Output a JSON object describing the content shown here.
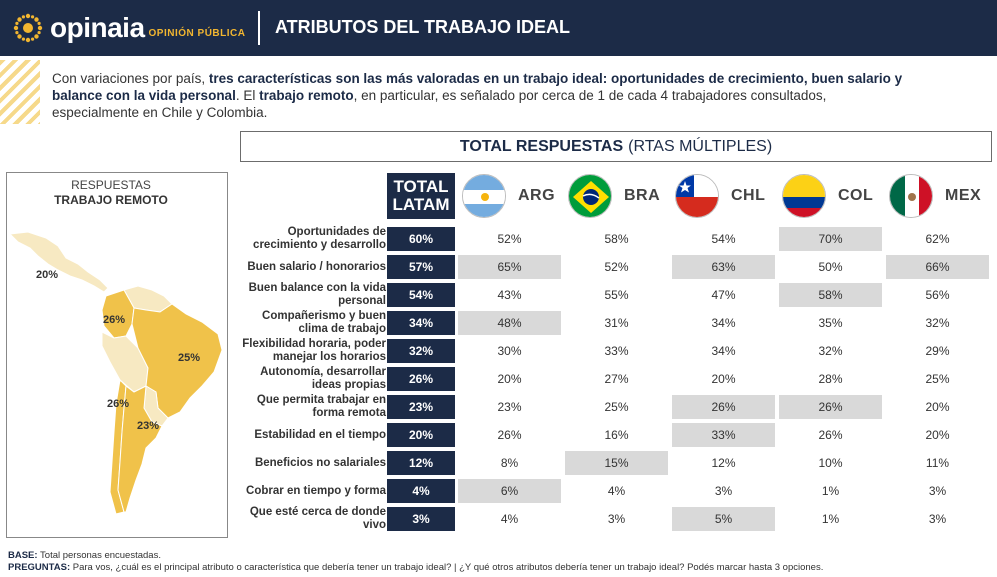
{
  "header": {
    "brand": "opinaia",
    "brand_sub": "OPINIÓN PÚBLICA",
    "title": "ATRIBUTOS DEL TRABAJO IDEAL"
  },
  "intro": {
    "t1": "Con variaciones por país, ",
    "b1": "tres características son las más valoradas en un trabajo ideal: oportunidades de crecimiento, buen salario y balance con la vida personal",
    "t2": ". El ",
    "b2": "trabajo remoto",
    "t3": ", en particular, es señalado por cerca de 1 de cada 4 trabajadores consultados, especialmente en Chile y Colombia."
  },
  "total_box": {
    "bold": "TOTAL RESPUESTAS",
    "normal": "(RTAS MÚLTIPLES)"
  },
  "map": {
    "title_line1": "RESPUESTAS",
    "title_line2": "TRABAJO REMOTO",
    "labels": {
      "mex": "20%",
      "col": "26%",
      "bra": "25%",
      "chl": "26%",
      "arg": "23%"
    },
    "highlight_color": "#f0c24a",
    "base_color": "#f7e9c2"
  },
  "latam_header": {
    "line1": "TOTAL",
    "line2": "LATAM"
  },
  "countries": [
    {
      "code": "ARG",
      "flag": "argentina-flag-icon"
    },
    {
      "code": "BRA",
      "flag": "brazil-flag-icon"
    },
    {
      "code": "CHL",
      "flag": "chile-flag-icon"
    },
    {
      "code": "COL",
      "flag": "colombia-flag-icon"
    },
    {
      "code": "MEX",
      "flag": "mexico-flag-icon"
    }
  ],
  "chart_data": {
    "type": "table",
    "columns": [
      "TOTAL LATAM",
      "ARG",
      "BRA",
      "CHL",
      "COL",
      "MEX"
    ],
    "rows": [
      {
        "label": "Oportunidades de crecimiento y desarrollo",
        "values": [
          "60%",
          "52%",
          "58%",
          "54%",
          "70%",
          "62%"
        ],
        "highlight": [
          false,
          false,
          false,
          true,
          false
        ]
      },
      {
        "label": "Buen salario / honorarios",
        "values": [
          "57%",
          "65%",
          "52%",
          "63%",
          "50%",
          "66%"
        ],
        "highlight": [
          true,
          false,
          true,
          false,
          true
        ]
      },
      {
        "label": "Buen balance con la vida personal",
        "values": [
          "54%",
          "43%",
          "55%",
          "47%",
          "58%",
          "56%"
        ],
        "highlight": [
          false,
          false,
          false,
          true,
          false
        ]
      },
      {
        "label": "Compañerismo y buen clima de trabajo",
        "values": [
          "34%",
          "48%",
          "31%",
          "34%",
          "35%",
          "32%"
        ],
        "highlight": [
          true,
          false,
          false,
          false,
          false
        ]
      },
      {
        "label": "Flexibilidad horaria, poder manejar los horarios",
        "values": [
          "32%",
          "30%",
          "33%",
          "34%",
          "32%",
          "29%"
        ],
        "highlight": [
          false,
          false,
          false,
          false,
          false
        ]
      },
      {
        "label": "Autonomía, desarrollar ideas propias",
        "values": [
          "26%",
          "20%",
          "27%",
          "20%",
          "28%",
          "25%"
        ],
        "highlight": [
          false,
          false,
          false,
          false,
          false
        ]
      },
      {
        "label": "Que permita trabajar en forma remota",
        "values": [
          "23%",
          "23%",
          "25%",
          "26%",
          "26%",
          "20%"
        ],
        "highlight": [
          false,
          false,
          true,
          true,
          false
        ]
      },
      {
        "label": "Estabilidad en el tiempo",
        "values": [
          "20%",
          "26%",
          "16%",
          "33%",
          "26%",
          "20%"
        ],
        "highlight": [
          false,
          false,
          true,
          false,
          false
        ]
      },
      {
        "label": "Beneficios no salariales",
        "values": [
          "12%",
          "8%",
          "15%",
          "12%",
          "10%",
          "11%"
        ],
        "highlight": [
          false,
          true,
          false,
          false,
          false
        ]
      },
      {
        "label": "Cobrar en tiempo y forma",
        "values": [
          "4%",
          "6%",
          "4%",
          "3%",
          "1%",
          "3%"
        ],
        "highlight": [
          true,
          false,
          false,
          false,
          false
        ]
      },
      {
        "label": "Que esté cerca de donde vivo",
        "values": [
          "3%",
          "4%",
          "3%",
          "5%",
          "1%",
          "3%"
        ],
        "highlight": [
          false,
          false,
          true,
          false,
          false
        ]
      }
    ]
  },
  "footer": {
    "base_label": "BASE:",
    "base_text": " Total personas encuestadas.",
    "q_label": "PREGUNTAS:",
    "q_text": " Para vos, ¿cuál es el principal atributo o característica que debería tener un trabajo ideal? | ¿Y qué otros atributos debería tener un trabajo ideal? Podés marcar hasta 3 opciones."
  }
}
